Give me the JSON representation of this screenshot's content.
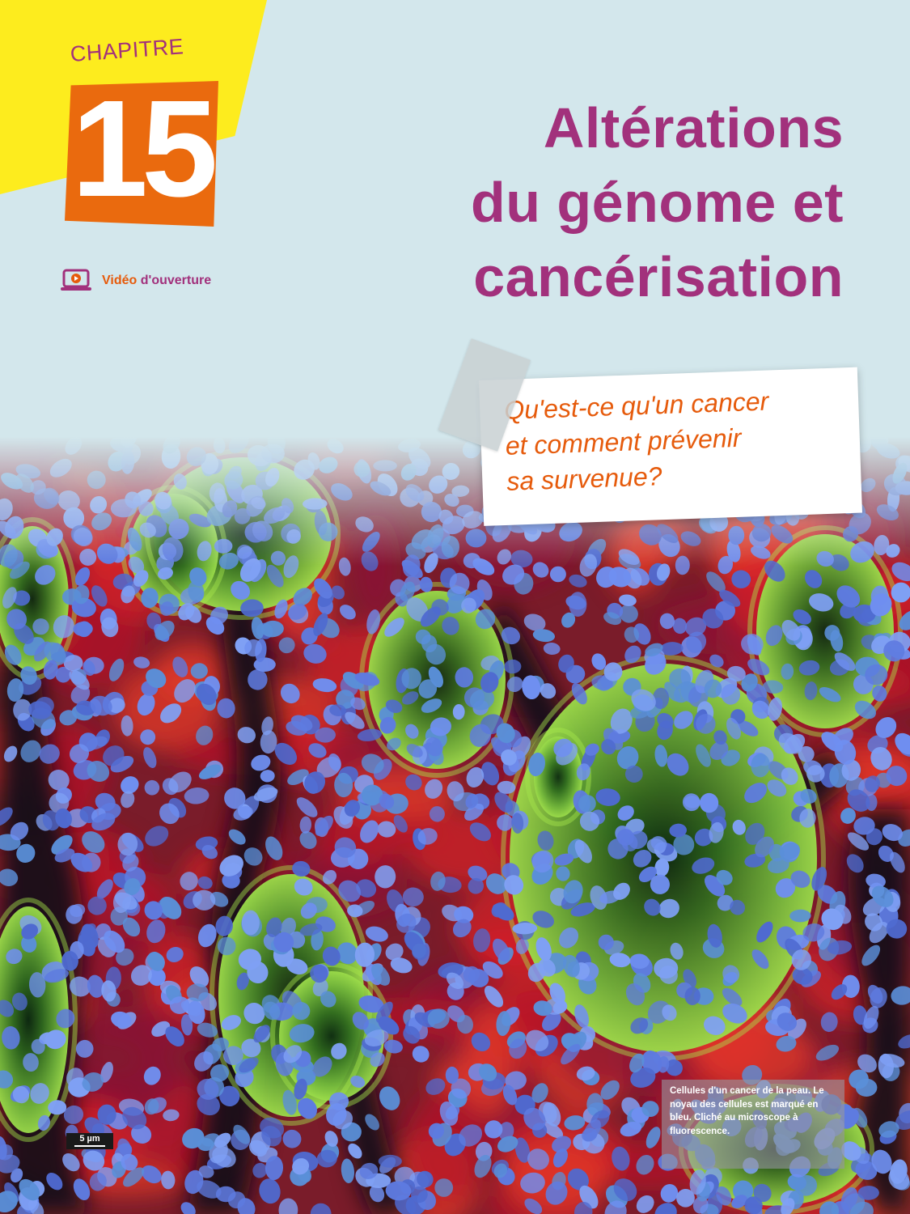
{
  "header": {
    "chapter_label": "CHAPITRE",
    "chapter_number": "15",
    "video_link": {
      "word1": "Vidéo",
      "word2": "d'ouverture",
      "icon": "video-play-icon"
    },
    "title_lines": [
      "Altérations",
      "du génome et",
      "cancérisation"
    ]
  },
  "question": {
    "lines": [
      "Qu'est-ce qu'un cancer",
      "et comment prévenir",
      "sa survenue?"
    ]
  },
  "image": {
    "caption": "Cellules d'un cancer de la peau. Le noyau des cellules est marqué en bleu. Cliché au microscope à fluorescence.",
    "scale_label": "5 µm"
  },
  "colors": {
    "background": "#d3e7ec",
    "title": "#a2317c",
    "accent_orange": "#ea6a0e",
    "tab_yellow": "#fdec1e"
  }
}
